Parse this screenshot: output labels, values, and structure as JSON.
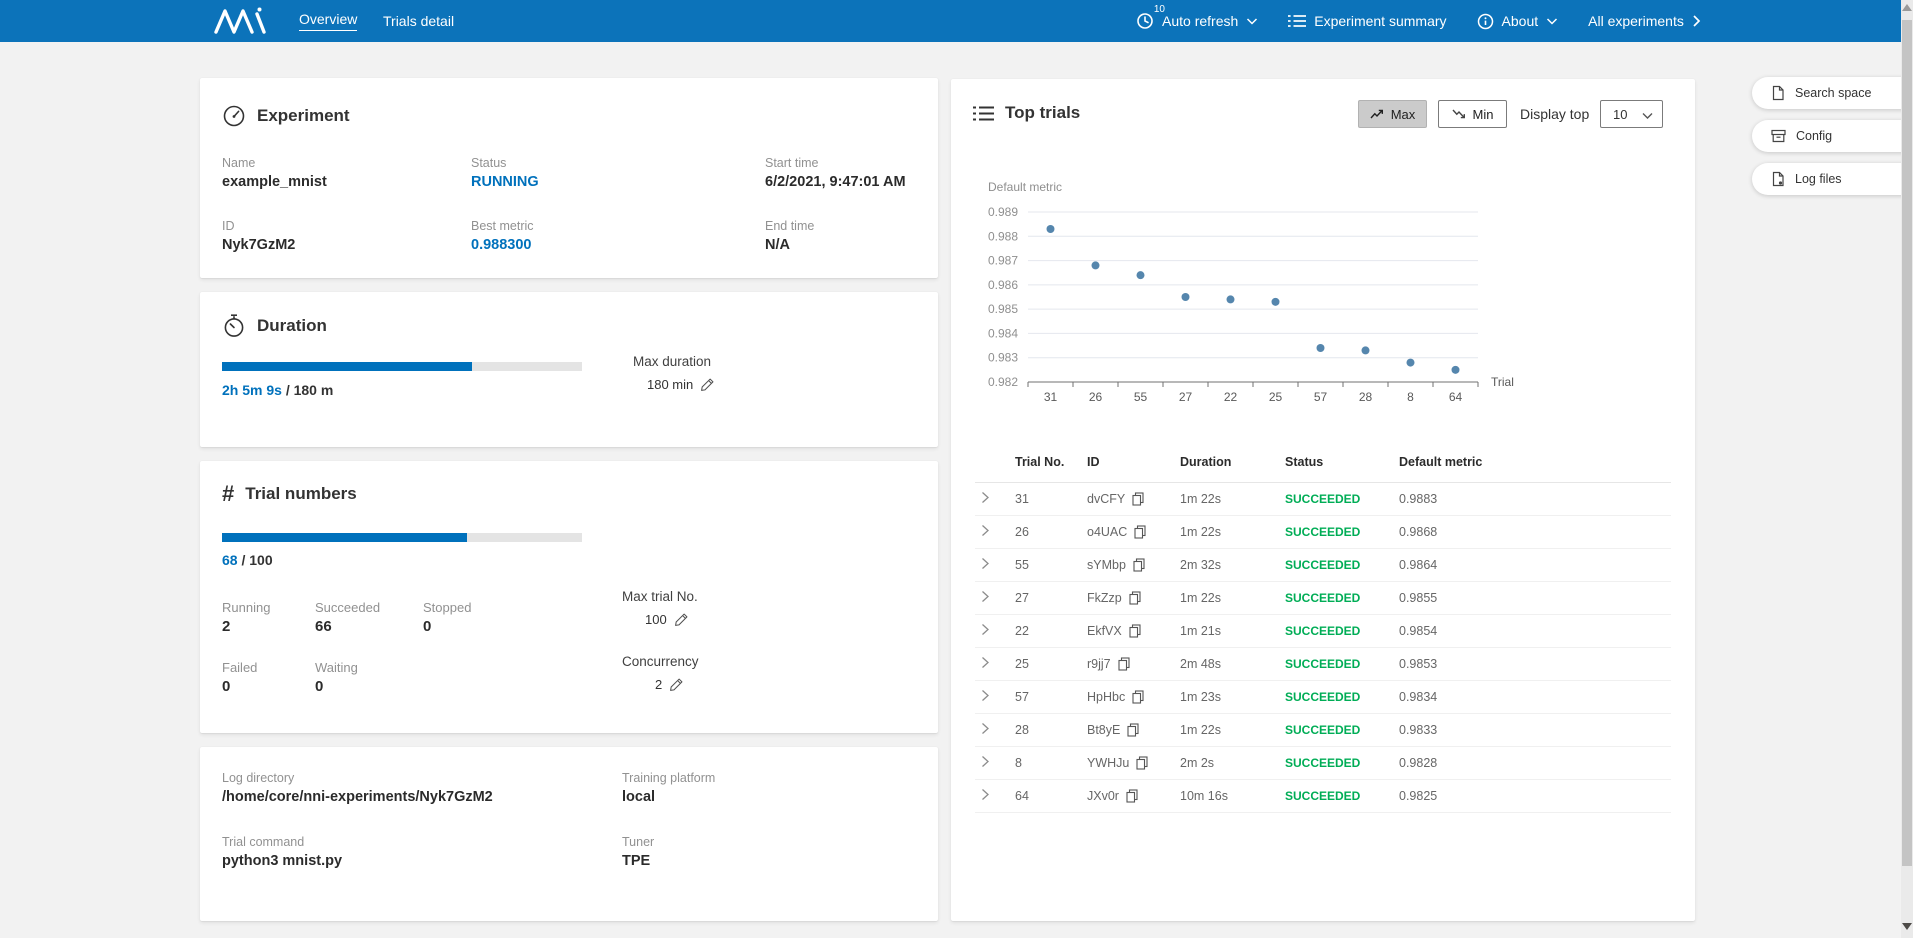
{
  "header": {
    "nav": [
      {
        "label": "Overview",
        "active": true
      },
      {
        "label": "Trials detail",
        "active": false
      }
    ],
    "auto_refresh": {
      "label": "Auto refresh",
      "badge": "10"
    },
    "experiment_summary_label": "Experiment summary",
    "about_label": "About",
    "all_experiments_label": "All experiments"
  },
  "side_buttons": [
    {
      "label": "Search space"
    },
    {
      "label": "Config"
    },
    {
      "label": "Log files"
    }
  ],
  "experiment": {
    "title": "Experiment",
    "fields": [
      {
        "label": "Name",
        "value": "example_mnist"
      },
      {
        "label": "Status",
        "value": "RUNNING"
      },
      {
        "label": "Start time",
        "value": "6/2/2021, 9:47:01 AM"
      },
      {
        "label": "ID",
        "value": "Nyk7GzM2"
      },
      {
        "label": "Best metric",
        "value": "0.988300"
      },
      {
        "label": "End time",
        "value": "N/A"
      }
    ]
  },
  "duration": {
    "title": "Duration",
    "elapsed": "2h 5m 9s",
    "separator": " / ",
    "total": "180 m",
    "percent": 69.5,
    "max_label": "Max duration",
    "max_value": "180 min"
  },
  "trial_numbers": {
    "title": "Trial numbers",
    "current": "68",
    "separator": " / ",
    "total": "100",
    "percent": 68,
    "stats": [
      {
        "label": "Running",
        "value": "2"
      },
      {
        "label": "Succeeded",
        "value": "66"
      },
      {
        "label": "Stopped",
        "value": "0"
      },
      {
        "label": "Failed",
        "value": "0"
      },
      {
        "label": "Waiting",
        "value": "0"
      }
    ],
    "max_trial_label": "Max trial No.",
    "max_trial_value": "100",
    "concurrency_label": "Concurrency",
    "concurrency_value": "2"
  },
  "info": {
    "fields": [
      {
        "label": "Log directory",
        "value": "/home/core/nni-experiments/Nyk7GzM2"
      },
      {
        "label": "Training platform",
        "value": "local"
      },
      {
        "label": "Trial command",
        "value": "python3 mnist.py"
      },
      {
        "label": "Tuner",
        "value": "TPE"
      }
    ]
  },
  "top_trials": {
    "title": "Top trials",
    "max_label": "Max",
    "min_label": "Min",
    "display_top_label": "Display top",
    "display_top_value": "10",
    "table": {
      "headers": [
        "Trial No.",
        "ID",
        "Duration",
        "Status",
        "Default metric"
      ],
      "rows": [
        {
          "no": "31",
          "id": "dvCFY",
          "duration": "1m 22s",
          "status": "SUCCEEDED",
          "metric": "0.9883"
        },
        {
          "no": "26",
          "id": "o4UAC",
          "duration": "1m 22s",
          "status": "SUCCEEDED",
          "metric": "0.9868"
        },
        {
          "no": "55",
          "id": "sYMbp",
          "duration": "2m 32s",
          "status": "SUCCEEDED",
          "metric": "0.9864"
        },
        {
          "no": "27",
          "id": "FkZzp",
          "duration": "1m 22s",
          "status": "SUCCEEDED",
          "metric": "0.9855"
        },
        {
          "no": "22",
          "id": "EkfVX",
          "duration": "1m 21s",
          "status": "SUCCEEDED",
          "metric": "0.9854"
        },
        {
          "no": "25",
          "id": "r9jj7",
          "duration": "2m 48s",
          "status": "SUCCEEDED",
          "metric": "0.9853"
        },
        {
          "no": "57",
          "id": "HpHbc",
          "duration": "1m 23s",
          "status": "SUCCEEDED",
          "metric": "0.9834"
        },
        {
          "no": "28",
          "id": "Bt8yE",
          "duration": "1m 22s",
          "status": "SUCCEEDED",
          "metric": "0.9833"
        },
        {
          "no": "8",
          "id": "YWHJu",
          "duration": "2m 2s",
          "status": "SUCCEEDED",
          "metric": "0.9828"
        },
        {
          "no": "64",
          "id": "JXv0r",
          "duration": "10m 16s",
          "status": "SUCCEEDED",
          "metric": "0.9825"
        }
      ]
    }
  },
  "chart_data": {
    "type": "scatter",
    "title": "Default metric",
    "xlabel": "Trial",
    "ylabel": "Default metric",
    "categories": [
      "31",
      "26",
      "55",
      "27",
      "22",
      "25",
      "57",
      "28",
      "8",
      "64"
    ],
    "values": [
      0.9883,
      0.9868,
      0.9864,
      0.9855,
      0.9854,
      0.9853,
      0.9834,
      0.9833,
      0.9828,
      0.9825
    ],
    "ylim": [
      0.982,
      0.989
    ],
    "yticks": [
      0.989,
      0.988,
      0.987,
      0.986,
      0.985,
      0.984,
      0.983,
      0.982
    ],
    "grid": true,
    "legend_position": "none",
    "point_color": "#5586ad"
  },
  "colors": {
    "header_bg": "#0c73ba",
    "accent_blue": "#0071bc",
    "status_running": "#0071bc",
    "status_succeeded": "#00ad56",
    "progress_fill": "#0071bc",
    "page_bg": "#f2f2f2",
    "scatter_point": "#5586ad"
  }
}
